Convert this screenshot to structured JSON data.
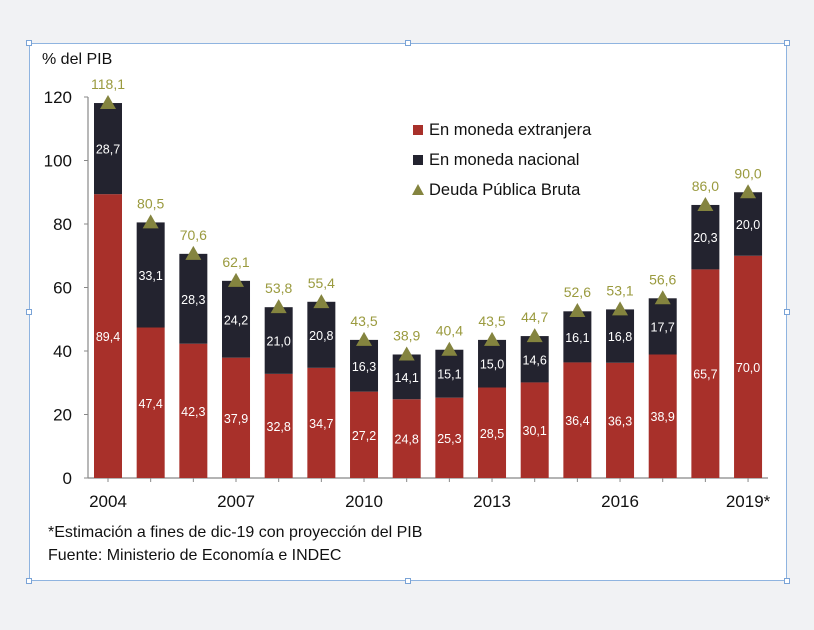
{
  "chart_data": {
    "type": "bar",
    "stacked": true,
    "ylabel": "% del PIB",
    "ylim": [
      0,
      120
    ],
    "yticks": [
      0,
      20,
      40,
      60,
      80,
      100,
      120
    ],
    "categories": [
      "2004",
      "2005",
      "2006",
      "2007",
      "2008",
      "2009",
      "2010",
      "2011",
      "2012",
      "2013",
      "2014",
      "2015",
      "2016",
      "2017",
      "2018",
      "2019*"
    ],
    "xtick_labels": [
      "2004",
      "2007",
      "2010",
      "2013",
      "2016",
      "2019*"
    ],
    "series": [
      {
        "name": "En moneda extranjera",
        "color": "#a8302a",
        "values": [
          89.4,
          47.4,
          42.3,
          37.9,
          32.8,
          34.7,
          27.2,
          24.8,
          25.3,
          28.5,
          30.1,
          36.4,
          36.3,
          38.9,
          65.7,
          70.0
        ],
        "labels": [
          "89,4",
          "47,4",
          "42,3",
          "37,9",
          "32,8",
          "34,7",
          "27,2",
          "24,8",
          "25,3",
          "28,5",
          "30,1",
          "36,4",
          "36,3",
          "38,9",
          "65,7",
          "70,0"
        ]
      },
      {
        "name": "En moneda nacional",
        "color": "#23232f",
        "values": [
          28.7,
          33.1,
          28.3,
          24.2,
          21.0,
          20.8,
          16.3,
          14.1,
          15.1,
          15.0,
          14.6,
          16.1,
          16.8,
          17.7,
          20.3,
          20.0
        ],
        "labels": [
          "28,7",
          "33,1",
          "28,3",
          "24,2",
          "21,0",
          "20,8",
          "16,3",
          "14,1",
          "15,1",
          "15,0",
          "14,6",
          "16,1",
          "16,8",
          "17,7",
          "20,3",
          "20,0"
        ]
      },
      {
        "name": "Deuda Pública Bruta",
        "type": "marker",
        "marker": "triangle",
        "color": "#84843f",
        "values": [
          118.1,
          80.5,
          70.6,
          62.1,
          53.8,
          55.4,
          43.5,
          38.9,
          40.4,
          43.5,
          44.7,
          52.6,
          53.1,
          56.6,
          86.0,
          90.0
        ],
        "labels": [
          "118,1",
          "80,5",
          "70,6",
          "62,1",
          "53,8",
          "55,4",
          "43,5",
          "38,9",
          "40,4",
          "43,5",
          "44,7",
          "52,6",
          "53,1",
          "56,6",
          "86,0",
          "90,0"
        ]
      }
    ],
    "legend_position": "top-right",
    "grid": false
  },
  "notes": {
    "footnote": "*Estimación a fines de dic-19 con proyección del PIB",
    "source": "Fuente: Ministerio de Economía e INDEC"
  }
}
